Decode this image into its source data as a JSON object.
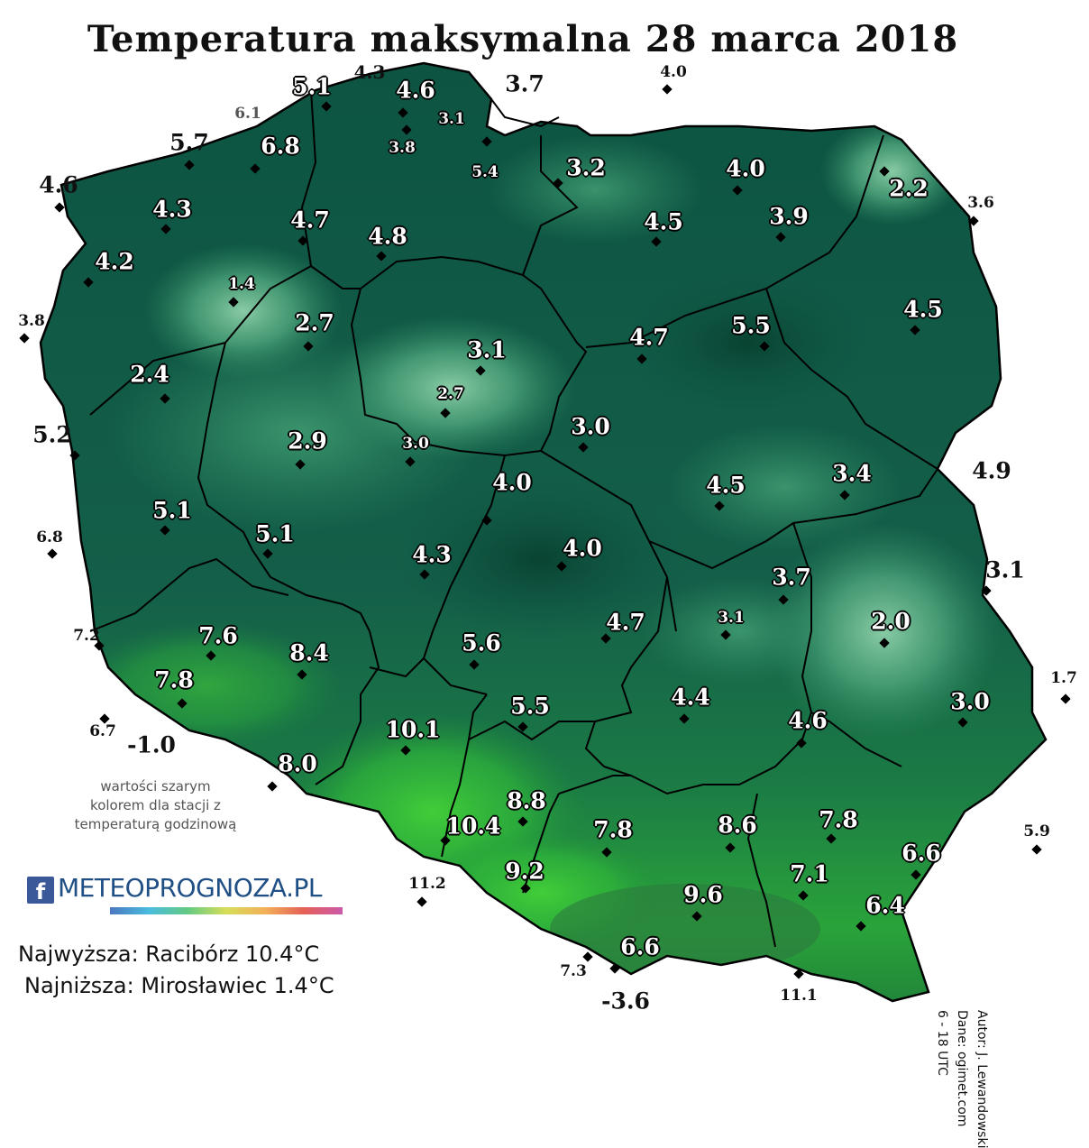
{
  "title": "Temperatura maksymalna 28 marca 2018",
  "note": "wartości szarym kolorem dla stacji z temperaturą godzinową",
  "logo": {
    "fb_glyph": "f",
    "text": "METEOPROGNOZA.PL"
  },
  "extremes": {
    "max": "Najwyższa: Racibórz 10.4°C",
    "min": "Najniższa: Mirosławiec 1.4°C"
  },
  "credits": {
    "author": "Autor: J. Lewandowski",
    "data_source": "Dane: ogimet.com",
    "hours": "6 - 18 UTC"
  },
  "colors": {
    "map_dark": "#0d5443",
    "map_mid": "#1e7559",
    "map_light": "#4fa67c",
    "map_lightest": "#8fd1ab",
    "map_bright_green": "#2fb53a",
    "border": "#000000"
  },
  "stations_inland": [
    {
      "v": "5.1"
    },
    {
      "v": "4.6"
    },
    {
      "v": "3.1",
      "grey": true
    },
    {
      "v": "3.8",
      "grey": true
    },
    {
      "v": "5.4",
      "small": true
    },
    {
      "v": "6.8"
    },
    {
      "v": "4.3"
    },
    {
      "v": "4.7"
    },
    {
      "v": "4.8"
    },
    {
      "v": "3.2"
    },
    {
      "v": "4.0"
    },
    {
      "v": "2.2"
    },
    {
      "v": "4.5"
    },
    {
      "v": "3.9"
    },
    {
      "v": "4.2"
    },
    {
      "v": "1.4",
      "small": true
    },
    {
      "v": "2.7"
    },
    {
      "v": "3.1"
    },
    {
      "v": "4.5"
    },
    {
      "v": "4.7"
    },
    {
      "v": "5.5"
    },
    {
      "v": "2.4"
    },
    {
      "v": "2.7",
      "small": true
    },
    {
      "v": "3.0"
    },
    {
      "v": "2.9"
    },
    {
      "v": "3.0",
      "small": true
    },
    {
      "v": "4.0"
    },
    {
      "v": "4.5"
    },
    {
      "v": "3.4"
    },
    {
      "v": "5.1"
    },
    {
      "v": "5.1"
    },
    {
      "v": "4.3"
    },
    {
      "v": "4.0"
    },
    {
      "v": "3.7"
    },
    {
      "v": "3.1",
      "small": true
    },
    {
      "v": "2.0"
    },
    {
      "v": "4.7"
    },
    {
      "v": "5.6"
    },
    {
      "v": "7.6"
    },
    {
      "v": "8.4"
    },
    {
      "v": "7.8"
    },
    {
      "v": "5.5"
    },
    {
      "v": "4.4"
    },
    {
      "v": "3.0"
    },
    {
      "v": "4.6"
    },
    {
      "v": "10.1"
    },
    {
      "v": "8.0"
    },
    {
      "v": "8.8"
    },
    {
      "v": "10.4"
    },
    {
      "v": "7.8"
    },
    {
      "v": "8.6"
    },
    {
      "v": "7.8"
    },
    {
      "v": "6.6"
    },
    {
      "v": "9.2"
    },
    {
      "v": "7.1"
    },
    {
      "v": "9.6"
    },
    {
      "v": "6.4"
    },
    {
      "v": "6.6"
    }
  ],
  "stations_outside": [
    {
      "v": "4.3"
    },
    {
      "v": "3.7",
      "big": true
    },
    {
      "v": "4.0",
      "small": true
    },
    {
      "v": "6.1",
      "grey": true
    },
    {
      "v": "5.7",
      "big": true
    },
    {
      "v": "4.6",
      "big": true
    },
    {
      "v": "3.6",
      "small": true
    },
    {
      "v": "3.8",
      "small": true
    },
    {
      "v": "5.2",
      "big": true
    },
    {
      "v": "4.9",
      "big": true
    },
    {
      "v": "6.8",
      "small": true
    },
    {
      "v": "3.1",
      "big": true
    },
    {
      "v": "7.2",
      "small": true
    },
    {
      "v": "1.7",
      "small": true
    },
    {
      "v": "6.7",
      "small": true
    },
    {
      "v": "-1.0",
      "big": true
    },
    {
      "v": "5.9",
      "small": true
    },
    {
      "v": "11.2",
      "small": true
    },
    {
      "v": "7.3",
      "small": true
    },
    {
      "v": "11.1",
      "small": true
    },
    {
      "v": "-3.6",
      "big": true
    }
  ]
}
